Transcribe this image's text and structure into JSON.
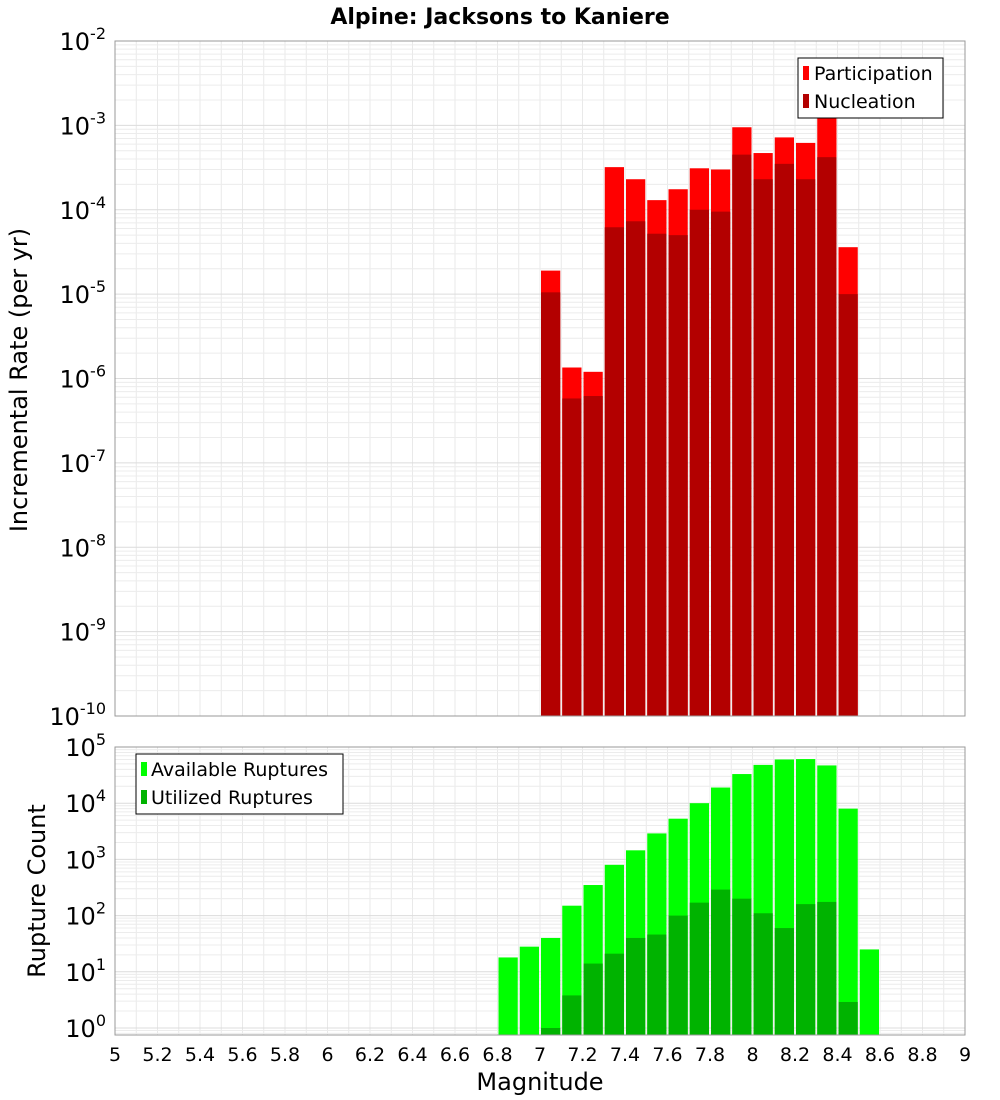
{
  "chart_data": [
    {
      "type": "bar",
      "title": "Alpine: Jacksons to Kaniere",
      "ylabel": "Incremental Rate (per yr)",
      "yscale": "log",
      "ylim": [
        1e-10,
        0.01
      ],
      "xlim": [
        5,
        9
      ],
      "bin_width": 0.1,
      "grid": true,
      "legend_position": "top-right",
      "overlay": true,
      "x": [
        7.05,
        7.15,
        7.25,
        7.35,
        7.45,
        7.55,
        7.65,
        7.75,
        7.85,
        7.95,
        8.05,
        8.15,
        8.25,
        8.35,
        8.45
      ],
      "series": [
        {
          "name": "Participation",
          "color": "#ff0000",
          "values": [
            1.9e-05,
            1.35e-06,
            1.2e-06,
            0.00032,
            0.00023,
            0.00013,
            0.000175,
            0.00031,
            0.0003,
            0.00095,
            0.00047,
            0.00072,
            0.00062,
            0.00125,
            3.6e-05
          ]
        },
        {
          "name": "Nucleation",
          "color": "#b30000",
          "values": [
            1.05e-05,
            5.8e-07,
            6.2e-07,
            6.2e-05,
            7.3e-05,
            5.2e-05,
            5e-05,
            0.0001,
            9.5e-05,
            0.00045,
            0.00023,
            0.00035,
            0.00023,
            0.00042,
            1e-05
          ]
        }
      ],
      "ytick_labels": [
        {
          "base": "10",
          "exp": "-10",
          "value": 1e-10
        },
        {
          "base": "10",
          "exp": "-9",
          "value": 1e-09
        },
        {
          "base": "10",
          "exp": "-8",
          "value": 1e-08
        },
        {
          "base": "10",
          "exp": "-7",
          "value": 1e-07
        },
        {
          "base": "10",
          "exp": "-6",
          "value": 1e-06
        },
        {
          "base": "10",
          "exp": "-5",
          "value": 1e-05
        },
        {
          "base": "10",
          "exp": "-4",
          "value": 0.0001
        },
        {
          "base": "10",
          "exp": "-3",
          "value": 0.001
        },
        {
          "base": "10",
          "exp": "-2",
          "value": 0.01
        }
      ]
    },
    {
      "type": "bar",
      "xlabel": "Magnitude",
      "ylabel": "Rupture Count",
      "yscale": "log",
      "ylim": [
        0.75,
        100000.0
      ],
      "xlim": [
        5,
        9
      ],
      "bin_width": 0.1,
      "grid": true,
      "legend_position": "top-left",
      "overlay": true,
      "x": [
        6.85,
        6.95,
        7.05,
        7.15,
        7.25,
        7.35,
        7.45,
        7.55,
        7.65,
        7.75,
        7.85,
        7.95,
        8.05,
        8.15,
        8.25,
        8.35,
        8.45,
        8.55
      ],
      "series": [
        {
          "name": "Available Ruptures",
          "color": "#00ff00",
          "values": [
            18,
            28,
            40,
            150,
            350,
            800,
            1450,
            2900,
            5300,
            10000,
            19000,
            33000,
            48000,
            60000,
            61000,
            47000,
            8000,
            25
          ]
        },
        {
          "name": "Utilized Ruptures",
          "color": "#00b300",
          "values": [
            null,
            null,
            1,
            3.8,
            14,
            21,
            40,
            46,
            100,
            170,
            290,
            200,
            110,
            60,
            160,
            175,
            2.9,
            null
          ]
        }
      ],
      "ytick_labels": [
        {
          "base": "10",
          "exp": "0",
          "value": 1
        },
        {
          "base": "10",
          "exp": "1",
          "value": 10
        },
        {
          "base": "10",
          "exp": "2",
          "value": 100
        },
        {
          "base": "10",
          "exp": "3",
          "value": 1000
        },
        {
          "base": "10",
          "exp": "4",
          "value": 10000
        },
        {
          "base": "10",
          "exp": "5",
          "value": 100000
        }
      ],
      "xtick_labels": [
        "5",
        "5.2",
        "5.4",
        "5.6",
        "5.8",
        "6",
        "6.2",
        "6.4",
        "6.6",
        "6.8",
        "7",
        "7.2",
        "7.4",
        "7.6",
        "7.8",
        "8",
        "8.2",
        "8.4",
        "8.6",
        "8.8",
        "9"
      ],
      "xticks": [
        5,
        5.2,
        5.4,
        5.6,
        5.8,
        6,
        6.2,
        6.4,
        6.6,
        6.8,
        7,
        7.2,
        7.4,
        7.6,
        7.8,
        8,
        8.2,
        8.4,
        8.6,
        8.8,
        9
      ]
    }
  ]
}
